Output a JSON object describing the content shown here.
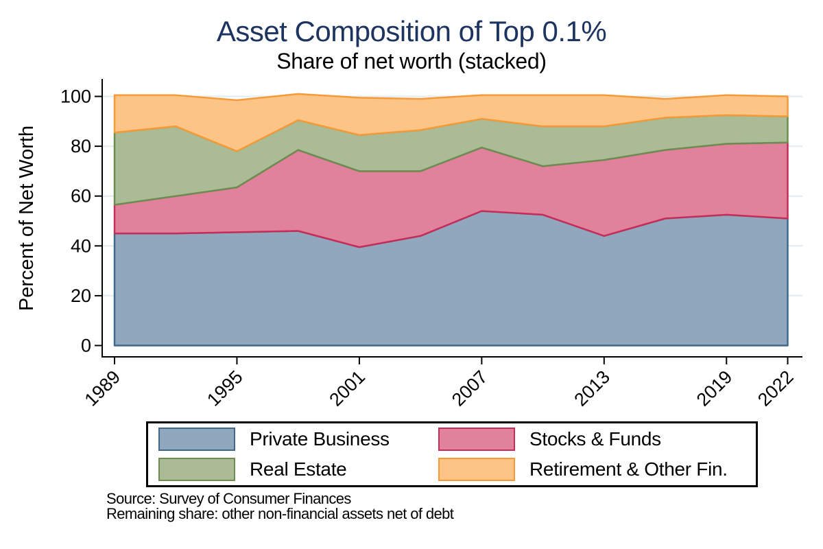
{
  "title": {
    "text": "Asset Composition of Top 0.1%",
    "color": "#1E3460"
  },
  "subtitle": {
    "text": "Share of net worth (stacked)"
  },
  "chart_data": {
    "type": "area",
    "stacked": true,
    "x": [
      1989,
      1992,
      1995,
      1998,
      2001,
      2004,
      2007,
      2010,
      2013,
      2016,
      2019,
      2022
    ],
    "series": [
      {
        "name": "Private Business",
        "fill": "#91A7BE",
        "stroke": "#3E688C",
        "values": [
          45,
          45,
          45.5,
          46,
          39.5,
          44,
          54,
          52.5,
          44,
          51,
          52.5,
          51
        ]
      },
      {
        "name": "Stocks & Funds",
        "fill": "#E0829B",
        "stroke": "#C52D58",
        "values": [
          11.5,
          15,
          18,
          32.5,
          30.5,
          26,
          25.5,
          19.5,
          30.5,
          27.5,
          28.5,
          30.5
        ]
      },
      {
        "name": "Real Estate",
        "fill": "#ABBB96",
        "stroke": "#6B8D50",
        "values": [
          29,
          28,
          14.5,
          12,
          14.5,
          16.5,
          11.5,
          16,
          13.5,
          13,
          11.5,
          10.5
        ]
      },
      {
        "name": "Retirement & Other Fin.",
        "fill": "#FDC487",
        "stroke": "#F69A38",
        "values": [
          15,
          12.5,
          20.5,
          10.5,
          15,
          12.5,
          9.5,
          12.5,
          12.5,
          7.5,
          8,
          8
        ]
      }
    ],
    "title": "Asset Composition of Top 0.1%",
    "subtitle": "Share of net worth (stacked)",
    "xlabel": "",
    "ylabel": "Percent of Net Worth",
    "ylim": [
      0,
      100
    ],
    "yticks": [
      0,
      20,
      40,
      60,
      80,
      100
    ],
    "xticks": [
      1989,
      1995,
      2001,
      2007,
      2013,
      2019,
      2022
    ],
    "grid": true,
    "grid_color": "#E6EEF3",
    "axis_color": "#000000",
    "legend_position": "bottom"
  },
  "notes": {
    "line1": "Source: Survey of Consumer Finances",
    "line2": "Remaining share: other non-financial assets net of debt"
  }
}
